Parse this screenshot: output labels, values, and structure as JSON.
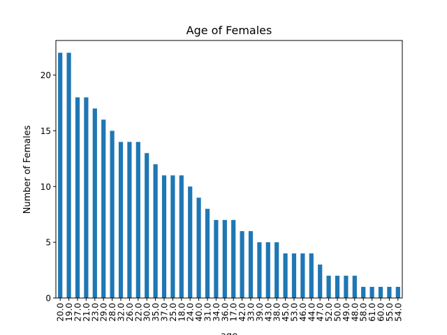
{
  "chart_data": {
    "type": "bar",
    "title": "Age of Females",
    "xlabel": "age",
    "ylabel": "Number of Females",
    "categories": [
      "20.0",
      "19.0",
      "27.0",
      "21.0",
      "23.0",
      "29.0",
      "28.0",
      "32.0",
      "26.0",
      "22.0",
      "30.0",
      "35.0",
      "37.0",
      "25.0",
      "18.0",
      "24.0",
      "40.0",
      "31.0",
      "34.0",
      "36.0",
      "17.0",
      "42.0",
      "33.0",
      "39.0",
      "43.0",
      "38.0",
      "45.0",
      "53.0",
      "46.0",
      "44.0",
      "47.0",
      "52.0",
      "50.0",
      "49.0",
      "48.0",
      "58.0",
      "61.0",
      "60.0",
      "55.0",
      "54.0"
    ],
    "values": [
      22,
      22,
      18,
      18,
      17,
      16,
      15,
      14,
      14,
      14,
      13,
      12,
      11,
      11,
      11,
      10,
      9,
      8,
      7,
      7,
      7,
      6,
      6,
      5,
      5,
      5,
      4,
      4,
      4,
      4,
      3,
      2,
      2,
      2,
      2,
      1,
      1,
      1,
      1,
      1
    ],
    "ylim": [
      0,
      23.1
    ],
    "yticks": [
      0,
      5,
      10,
      15,
      20
    ],
    "grid": false,
    "legend": "none",
    "bar_color": "#1f77b4"
  }
}
